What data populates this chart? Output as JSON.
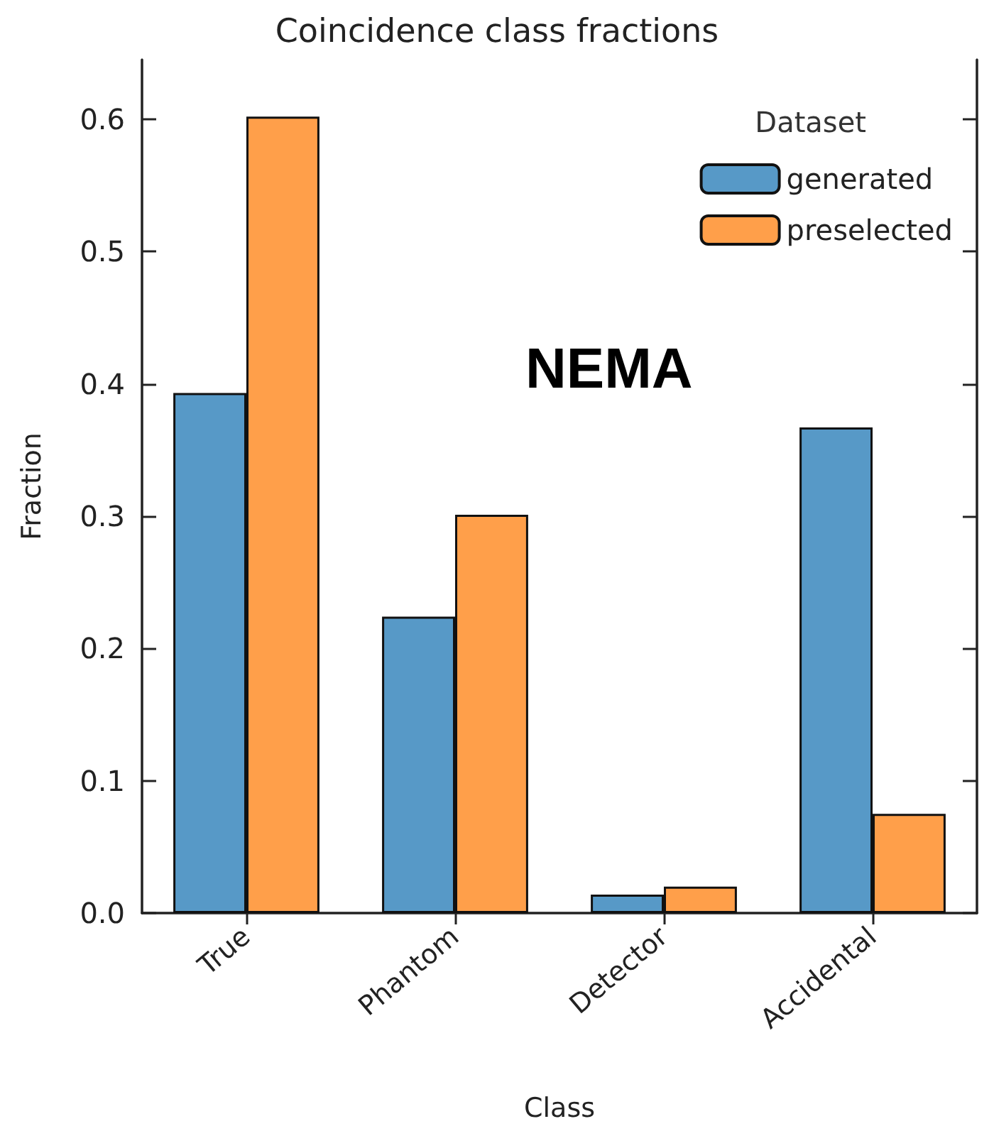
{
  "chart_data": {
    "type": "bar",
    "title": "Coincidence class fractions",
    "xlabel": "Class",
    "ylabel": "Fraction",
    "legend_title": "Dataset",
    "categories": [
      "True",
      "Phantom",
      "Detector",
      "Accidental"
    ],
    "series": [
      {
        "name": "generated",
        "color": "#5799c7",
        "values": [
          0.393,
          0.224,
          0.014,
          0.367
        ]
      },
      {
        "name": "preselected",
        "color": "#ff9f4a",
        "values": [
          0.602,
          0.301,
          0.02,
          0.075
        ]
      }
    ],
    "annotations": [
      "NEMA"
    ],
    "ylim": [
      0,
      0.645
    ],
    "yticks": [
      {
        "value": 0,
        "label": "0.0"
      },
      0.1,
      0.2,
      0.3,
      0.4,
      0.5,
      0.6
    ],
    "grid": false,
    "legend": "top right"
  }
}
